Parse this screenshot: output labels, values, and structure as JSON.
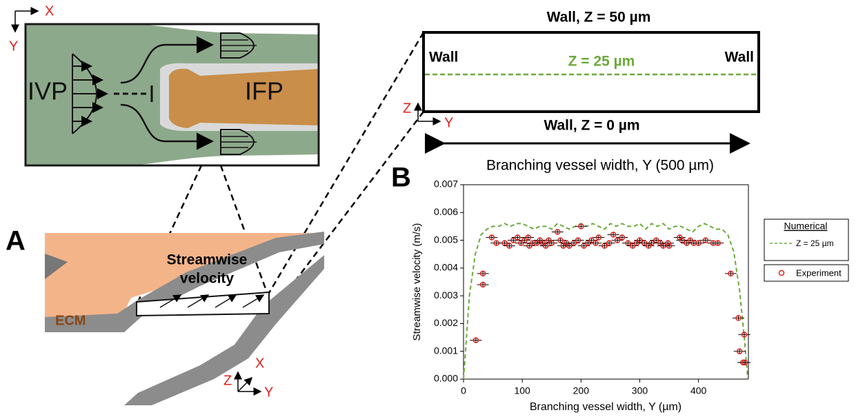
{
  "figure": {
    "panel_a": {
      "label": "A",
      "axis_x": "X",
      "axis_y": "Y",
      "ivp": "IVP",
      "ifp": "IFP",
      "ecm": "ECM",
      "streamwise": [
        "Streamwise",
        "velocity"
      ],
      "axes3d": {
        "z": "Z",
        "x": "X",
        "y": "Y"
      }
    },
    "cross_section": {
      "top_wall": "Wall, Z = 50 µm",
      "left_wall": "Wall",
      "right_wall": "Wall",
      "midplane": "Z = 25 µm",
      "axis_z": "Z",
      "axis_y": "Y",
      "bottom_wall": "Wall, Z = 0 µm",
      "width_label": "Branching vessel width, Y (500 µm)"
    },
    "panel_b": {
      "label": "B"
    }
  },
  "chart_data": {
    "type": "scatter",
    "xlabel": "Branching vessel width, Y (µm)",
    "ylabel": "Streamwise velocity (m/s)",
    "xlim": [
      0,
      485
    ],
    "ylim": [
      0,
      0.007
    ],
    "xticks": [
      0,
      100,
      200,
      300,
      400
    ],
    "yticks": [
      {
        "value": 0,
        "label": "0.000"
      },
      {
        "value": 0.001,
        "label": "0.001"
      },
      {
        "value": 0.002,
        "label": "0.002"
      },
      {
        "value": 0.003,
        "label": "0.003"
      },
      {
        "value": 0.004,
        "label": "0.004"
      },
      {
        "value": 0.005,
        "label": "0.005"
      },
      {
        "value": 0.006,
        "label": "0.006"
      },
      {
        "value": 0.007,
        "label": "0.007"
      }
    ],
    "legend_title": "Numerical",
    "series": [
      {
        "name": "Z = 25 µm",
        "kind": "line",
        "color": "#6aaa3a",
        "x": [
          0,
          5,
          10,
          20,
          30,
          40,
          50,
          60,
          70,
          80,
          90,
          100,
          110,
          120,
          130,
          140,
          150,
          160,
          170,
          180,
          190,
          200,
          210,
          220,
          230,
          240,
          250,
          260,
          270,
          280,
          290,
          300,
          310,
          320,
          330,
          340,
          350,
          360,
          370,
          380,
          390,
          400,
          410,
          420,
          430,
          440,
          450,
          460,
          470,
          478,
          484
        ],
        "values": [
          0,
          0.0015,
          0.003,
          0.0045,
          0.0052,
          0.0054,
          0.0055,
          0.0055,
          0.0056,
          0.0055,
          0.0056,
          0.0056,
          0.0055,
          0.0054,
          0.0055,
          0.0055,
          0.0054,
          0.0056,
          0.0055,
          0.0054,
          0.0055,
          0.0056,
          0.0055,
          0.0056,
          0.0055,
          0.0054,
          0.0056,
          0.0055,
          0.0056,
          0.0055,
          0.0055,
          0.0056,
          0.0054,
          0.0056,
          0.0055,
          0.0056,
          0.0054,
          0.0055,
          0.0055,
          0.0054,
          0.0053,
          0.0055,
          0.0056,
          0.0055,
          0.0054,
          0.0054,
          0.0052,
          0.0046,
          0.0032,
          0.0015,
          0
        ]
      },
      {
        "name": "Experiment",
        "kind": "marker",
        "color": "#e0201b",
        "xerr": 10,
        "yerr": 0.0001,
        "x": [
          21,
          33,
          33,
          48,
          56,
          70,
          78,
          85,
          92,
          98,
          104,
          110,
          112,
          118,
          125,
          130,
          135,
          140,
          145,
          150,
          160,
          165,
          170,
          175,
          180,
          188,
          195,
          200,
          205,
          212,
          218,
          225,
          230,
          240,
          248,
          255,
          262,
          270,
          280,
          288,
          295,
          300,
          308,
          315,
          320,
          328,
          335,
          340,
          348,
          350,
          368,
          372,
          380,
          386,
          392,
          400,
          412,
          425,
          433,
          455,
          468,
          470,
          476,
          478,
          479
        ],
        "values": [
          0.0014,
          0.0034,
          0.0038,
          0.0051,
          0.0049,
          0.0049,
          0.0048,
          0.005,
          0.0051,
          0.0049,
          0.005,
          0.0051,
          0.0048,
          0.0049,
          0.0049,
          0.005,
          0.0049,
          0.0048,
          0.005,
          0.0049,
          0.0053,
          0.005,
          0.0048,
          0.0049,
          0.0048,
          0.0049,
          0.005,
          0.0055,
          0.0048,
          0.0049,
          0.005,
          0.0049,
          0.0051,
          0.0048,
          0.0049,
          0.0052,
          0.005,
          0.0051,
          0.0049,
          0.0048,
          0.0049,
          0.005,
          0.0049,
          0.0048,
          0.0049,
          0.005,
          0.0049,
          0.0048,
          0.0049,
          0.0048,
          0.0051,
          0.005,
          0.0049,
          0.005,
          0.0049,
          0.0049,
          0.005,
          0.0049,
          0.0049,
          0.0038,
          0.0022,
          0.001,
          0.0006,
          0.0016,
          0.0006
        ]
      }
    ]
  }
}
